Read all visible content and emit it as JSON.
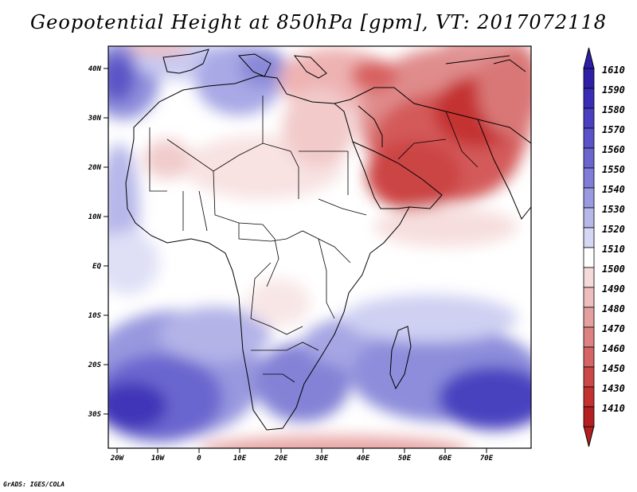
{
  "title": "Geopotential Height at 850hPa [gpm], VT: 2017072118",
  "credit": "GrADS: IGES/COLA",
  "map": {
    "region": "Africa and Arabian Peninsula",
    "lon_labels": [
      "20W",
      "10W",
      "0",
      "10E",
      "20E",
      "30E",
      "40E",
      "50E",
      "60E",
      "70E"
    ],
    "lat_labels": [
      "40N",
      "30N",
      "20N",
      "10N",
      "EQ",
      "10S",
      "20S",
      "30S"
    ],
    "lon_range": [
      -22,
      81
    ],
    "lat_range": [
      -37,
      45
    ]
  },
  "colorbar": {
    "levels": [
      "1610",
      "1590",
      "1580",
      "1570",
      "1560",
      "1550",
      "1540",
      "1530",
      "1520",
      "1510",
      "1500",
      "1490",
      "1480",
      "1470",
      "1460",
      "1450",
      "1430",
      "1410"
    ],
    "colors": [
      "#2e1fa6",
      "#3a2db5",
      "#4a3fc0",
      "#5a52c8",
      "#6b66cf",
      "#7f7dd7",
      "#9a9ae0",
      "#b7b8ea",
      "#d6d7f4",
      "#ffffff",
      "#f6dada",
      "#eebebe",
      "#e4a0a0",
      "#dc8282",
      "#d56565",
      "#cc4848",
      "#c33131",
      "#b51f1f"
    ]
  }
}
